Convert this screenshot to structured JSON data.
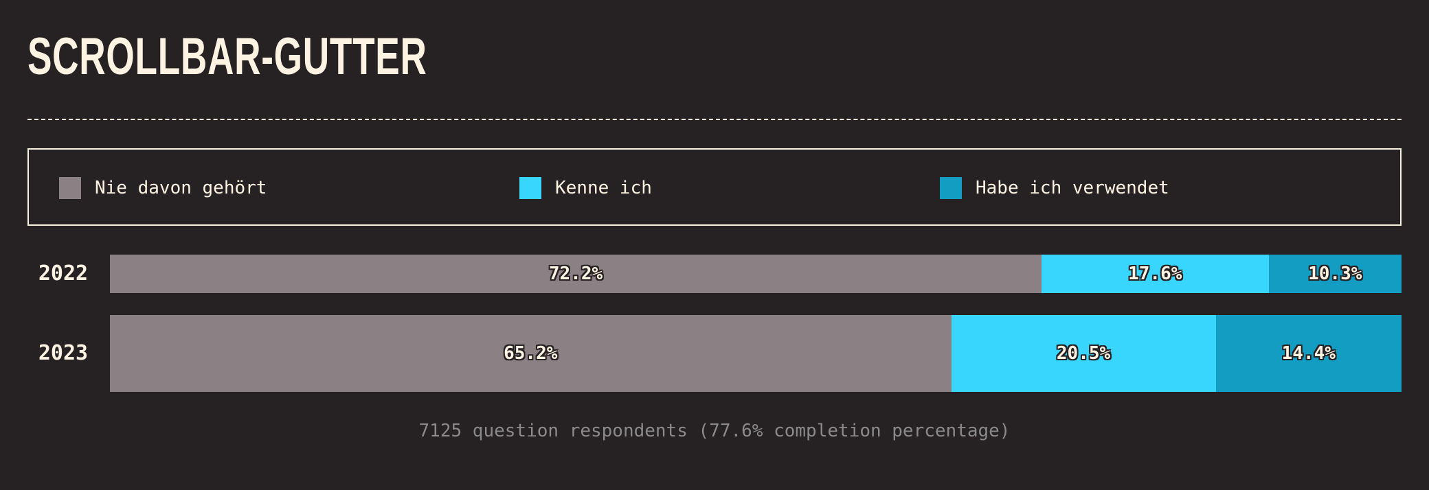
{
  "title": "SCROLLBAR-GUTTER",
  "legend": [
    {
      "label": "Nie davon gehört",
      "color": "#8b8084"
    },
    {
      "label": "Kenne ich",
      "color": "#38d5fd"
    },
    {
      "label": "Habe ich verwendet",
      "color": "#139dc3"
    }
  ],
  "chart_data": {
    "type": "bar",
    "orientation": "horizontal-stacked-percent",
    "categories": [
      "2022",
      "2023"
    ],
    "series": [
      {
        "name": "Nie davon gehört",
        "values": [
          72.2,
          65.2
        ]
      },
      {
        "name": "Kenne ich",
        "values": [
          17.6,
          20.5
        ]
      },
      {
        "name": "Habe ich verwendet",
        "values": [
          10.3,
          14.4
        ]
      }
    ],
    "labels": [
      [
        "72.2%",
        "17.6%",
        "10.3%"
      ],
      [
        "65.2%",
        "20.5%",
        "14.4%"
      ]
    ],
    "ylim": [
      0,
      100
    ],
    "legend_position": "top"
  },
  "footnote": "7125 question respondents (77.6% completion percentage)"
}
